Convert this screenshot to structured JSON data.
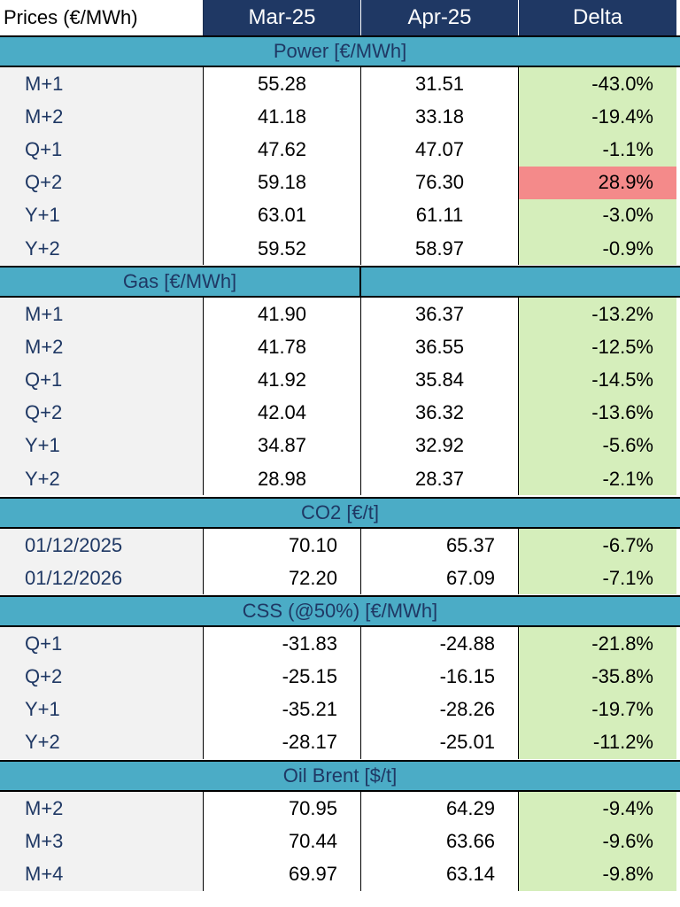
{
  "header": {
    "label": "Prices (€/MWh)",
    "col1": "Mar-25",
    "col2": "Apr-25",
    "col3": "Delta"
  },
  "sections": [
    {
      "title": "Power [€/MWh]",
      "rows": [
        {
          "label": "M+1",
          "mar": "55.28",
          "apr": "31.51",
          "delta": "-43.0%",
          "status": "green"
        },
        {
          "label": "M+2",
          "mar": "41.18",
          "apr": "33.18",
          "delta": "-19.4%",
          "status": "green"
        },
        {
          "label": "Q+1",
          "mar": "47.62",
          "apr": "47.07",
          "delta": "-1.1%",
          "status": "green"
        },
        {
          "label": "Q+2",
          "mar": "59.18",
          "apr": "76.30",
          "delta": "28.9%",
          "status": "red"
        },
        {
          "label": "Y+1",
          "mar": "63.01",
          "apr": "61.11",
          "delta": "-3.0%",
          "status": "green"
        },
        {
          "label": "Y+2",
          "mar": "59.52",
          "apr": "58.97",
          "delta": "-0.9%",
          "status": "green"
        }
      ]
    },
    {
      "title": "Gas [€/MWh]",
      "rows": [
        {
          "label": "M+1",
          "mar": "41.90",
          "apr": "36.37",
          "delta": "-13.2%",
          "status": "green"
        },
        {
          "label": "M+2",
          "mar": "41.78",
          "apr": "36.55",
          "delta": "-12.5%",
          "status": "green"
        },
        {
          "label": "Q+1",
          "mar": "41.92",
          "apr": "35.84",
          "delta": "-14.5%",
          "status": "green"
        },
        {
          "label": "Q+2",
          "mar": "42.04",
          "apr": "36.32",
          "delta": "-13.6%",
          "status": "green"
        },
        {
          "label": "Y+1",
          "mar": "34.87",
          "apr": "32.92",
          "delta": "-5.6%",
          "status": "green"
        },
        {
          "label": "Y+2",
          "mar": "28.98",
          "apr": "28.37",
          "delta": "-2.1%",
          "status": "green"
        }
      ]
    },
    {
      "title": "CO2 [€/t]",
      "rows": [
        {
          "label": "01/12/2025",
          "mar": "70.10",
          "apr": "65.37",
          "delta": "-6.7%",
          "status": "green"
        },
        {
          "label": "01/12/2026",
          "mar": "72.20",
          "apr": "67.09",
          "delta": "-7.1%",
          "status": "green"
        }
      ]
    },
    {
      "title": "CSS (@50%) [€/MWh]",
      "rows": [
        {
          "label": "Q+1",
          "mar": "-31.83",
          "apr": "-24.88",
          "delta": "-21.8%",
          "status": "green"
        },
        {
          "label": "Q+2",
          "mar": "-25.15",
          "apr": "-16.15",
          "delta": "-35.8%",
          "status": "green"
        },
        {
          "label": "Y+1",
          "mar": "-35.21",
          "apr": "-28.26",
          "delta": "-19.7%",
          "status": "green"
        },
        {
          "label": "Y+2",
          "mar": "-28.17",
          "apr": "-25.01",
          "delta": "-11.2%",
          "status": "green"
        }
      ]
    },
    {
      "title": "Oil Brent [$/t]",
      "rows": [
        {
          "label": "M+2",
          "mar": "70.95",
          "apr": "64.29",
          "delta": "-9.4%",
          "status": "green"
        },
        {
          "label": "M+3",
          "mar": "70.44",
          "apr": "63.66",
          "delta": "-9.6%",
          "status": "green"
        },
        {
          "label": "M+4",
          "mar": "69.97",
          "apr": "63.14",
          "delta": "-9.8%",
          "status": "green"
        }
      ]
    }
  ]
}
